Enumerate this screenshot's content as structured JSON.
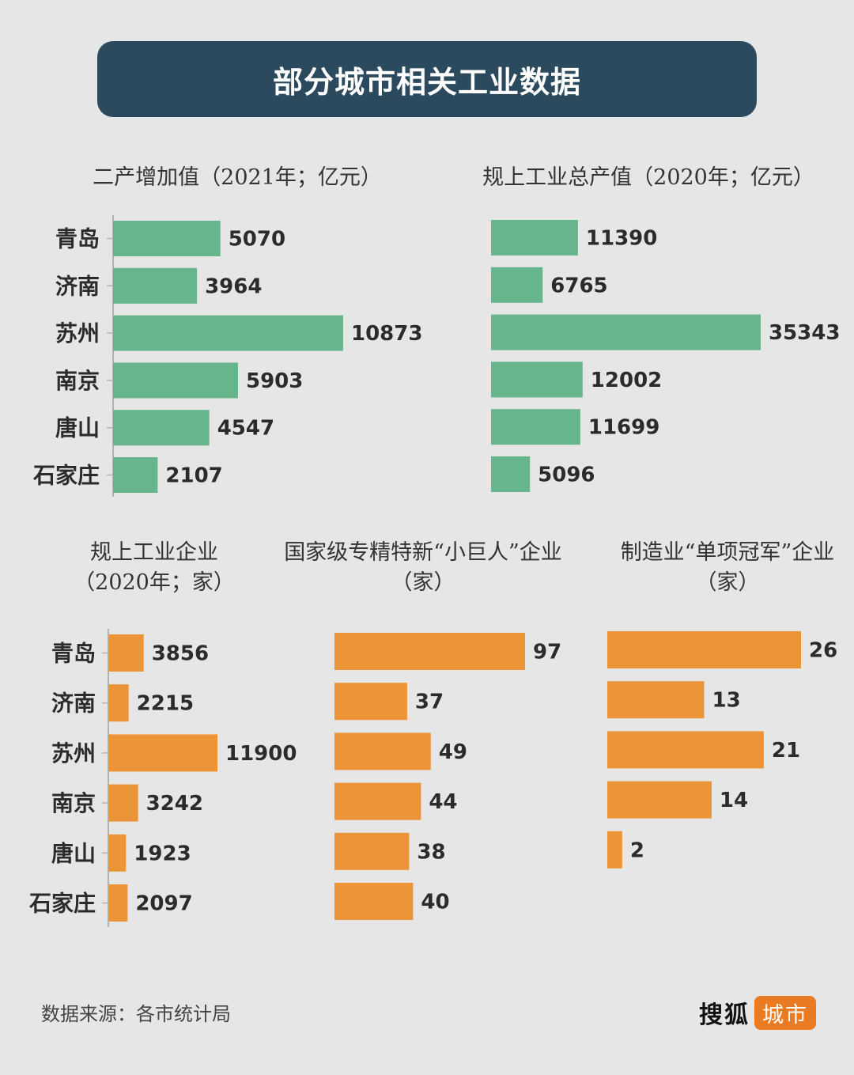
{
  "banner": {
    "title": "部分城市相关工业数据"
  },
  "colors": {
    "green": "#66b58c",
    "orange": "#ec9538",
    "banner": "#2c4a5e",
    "axis": "#b3b3b3"
  },
  "chart_data": [
    {
      "type": "bar",
      "orientation": "horizontal",
      "title": "二产增加值（2021年；亿元）",
      "categories": [
        "青岛",
        "济南",
        "苏州",
        "南京",
        "唐山",
        "石家庄"
      ],
      "values": [
        5070,
        3964,
        10873,
        5903,
        4547,
        2107
      ],
      "value_labels": [
        "5070",
        "3964",
        "10873",
        "5903",
        "4547",
        "2107"
      ],
      "color": "#66b58c"
    },
    {
      "type": "bar",
      "orientation": "horizontal",
      "title": "规上工业总产值（2020年；亿元）",
      "categories": [
        "青岛",
        "济南",
        "苏州",
        "南京",
        "唐山",
        "石家庄"
      ],
      "values": [
        11390,
        6765,
        35343,
        12002,
        11699,
        5096
      ],
      "value_labels": [
        "11390",
        "6765",
        "35343",
        "12002",
        "11699",
        "5096"
      ],
      "color": "#66b58c"
    },
    {
      "type": "bar",
      "orientation": "horizontal",
      "title_lines": [
        "规上工业企业",
        "（2020年；家）"
      ],
      "categories": [
        "青岛",
        "济南",
        "苏州",
        "南京",
        "唐山",
        "石家庄"
      ],
      "values": [
        3856,
        2215,
        11900,
        3242,
        1923,
        2097
      ],
      "value_labels": [
        "3856",
        "2215",
        "11900",
        "3242",
        "1923",
        "2097"
      ],
      "color": "#ec9538"
    },
    {
      "type": "bar",
      "orientation": "horizontal",
      "title_lines": [
        "国家级专精特新“小巨人”企业",
        "（家）"
      ],
      "categories": [
        "青岛",
        "济南",
        "苏州",
        "南京",
        "唐山",
        "石家庄"
      ],
      "values": [
        97,
        37,
        49,
        44,
        38,
        40
      ],
      "value_labels": [
        "97",
        "37",
        "49",
        "44",
        "38",
        "40"
      ],
      "color": "#ec9538"
    },
    {
      "type": "bar",
      "orientation": "horizontal",
      "title_lines": [
        "制造业“单项冠军”企业",
        "（家）"
      ],
      "categories": [
        "青岛",
        "济南",
        "苏州",
        "南京",
        "唐山"
      ],
      "values": [
        26,
        13,
        21,
        14,
        2
      ],
      "value_labels": [
        "26",
        "13",
        "21",
        "14",
        "2"
      ],
      "color": "#ec9538"
    }
  ],
  "footer": {
    "source": "数据来源：各市统计局",
    "logo_text": "搜狐",
    "logo_badge": "城市"
  }
}
